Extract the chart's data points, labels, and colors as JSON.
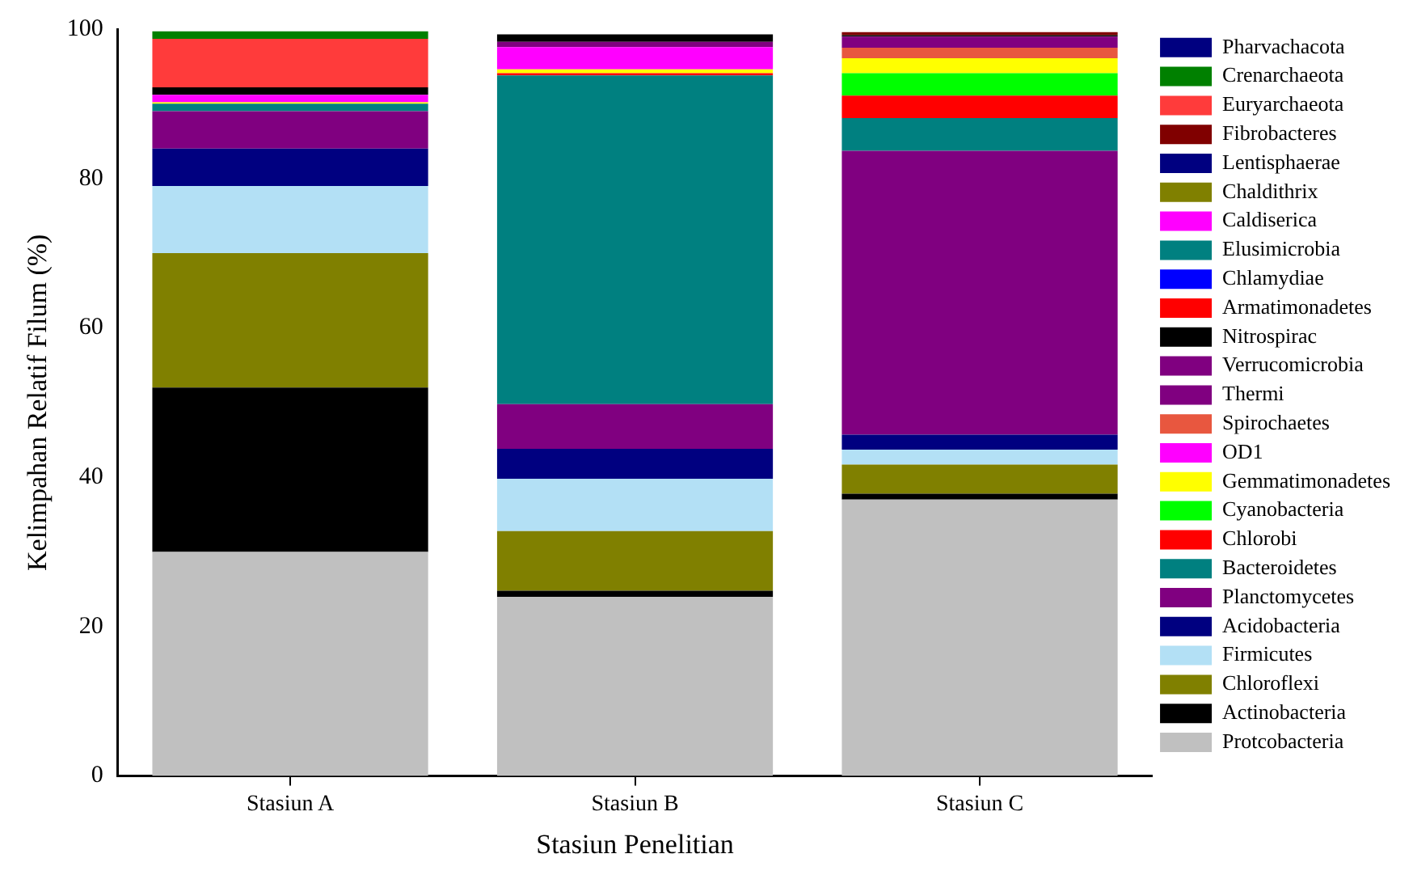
{
  "chart_data": {
    "type": "bar",
    "stacked": true,
    "xlabel": "Stasiun Penelitian",
    "ylabel": "Kelimpahan Relatif Filum (%)",
    "categories": [
      "Stasiun A",
      "Stasiun B",
      "Stasiun C"
    ],
    "ylim": [
      0,
      100
    ],
    "yticks": [
      0,
      20,
      40,
      60,
      80,
      100
    ],
    "legend": "right",
    "series": [
      {
        "name": "Protcobacteria",
        "color": "#c0c0c0",
        "values": [
          30,
          24,
          37
        ]
      },
      {
        "name": "Actinobacteria",
        "color": "#000000",
        "values": [
          22,
          0.8,
          0.8
        ]
      },
      {
        "name": "Chloroflexi",
        "color": "#808000",
        "values": [
          18,
          8,
          3.9
        ]
      },
      {
        "name": "Firmicutes",
        "color": "#b3e0f5",
        "values": [
          9,
          7,
          2
        ]
      },
      {
        "name": "Acidobacteria",
        "color": "#000080",
        "values": [
          5,
          4,
          2
        ]
      },
      {
        "name": "Planctomycetes",
        "color": "#800080",
        "values": [
          5,
          6,
          38
        ]
      },
      {
        "name": "Bacteroidetes",
        "color": "#008080",
        "values": [
          1,
          44,
          4.4
        ]
      },
      {
        "name": "Chlorobi",
        "color": "#ff0000",
        "values": [
          null,
          0.3,
          3
        ]
      },
      {
        "name": "Cyanobacteria",
        "color": "#00ff00",
        "values": [
          null,
          null,
          3
        ]
      },
      {
        "name": "Gemmatimonadetes",
        "color": "#ffff00",
        "values": [
          0.2,
          0.5,
          2
        ]
      },
      {
        "name": "OD1",
        "color": "#ff00ff",
        "values": [
          1,
          3,
          null
        ]
      },
      {
        "name": "Spirochaetes",
        "color": "#e8573f",
        "values": [
          null,
          null,
          1.4
        ]
      },
      {
        "name": "Thermi",
        "color": "#800080",
        "values": [
          null,
          null,
          1.5
        ]
      },
      {
        "name": "Verrucomicrobia",
        "color": "#800080",
        "values": [
          null,
          0.7,
          null
        ]
      },
      {
        "name": "Nitrospirac",
        "color": "#000000",
        "values": [
          1,
          1,
          0.2
        ]
      },
      {
        "name": "Armatimonadetes",
        "color": "#ff0000",
        "values": [
          null,
          null,
          null
        ]
      },
      {
        "name": "Chlamydiae",
        "color": "#0000ff",
        "values": [
          null,
          null,
          null
        ]
      },
      {
        "name": "Elusimicrobia",
        "color": "#008080",
        "values": [
          null,
          null,
          null
        ]
      },
      {
        "name": "Caldiserica",
        "color": "#ff00ff",
        "values": [
          null,
          null,
          null
        ]
      },
      {
        "name": "Chaldithrix",
        "color": "#808000",
        "values": [
          null,
          null,
          null
        ]
      },
      {
        "name": "Lentisphaerae",
        "color": "#000080",
        "values": [
          null,
          null,
          null
        ]
      },
      {
        "name": "Fibrobacteres",
        "color": "#800000",
        "values": [
          null,
          null,
          0.4
        ]
      },
      {
        "name": "Euryarchaeota",
        "color": "#ff3b3b",
        "values": [
          6.5,
          null,
          null
        ]
      },
      {
        "name": "Crenarchaeota",
        "color": "#008000",
        "values": [
          1,
          null,
          null
        ]
      },
      {
        "name": "Pharvachacota",
        "color": "#000080",
        "values": [
          null,
          null,
          null
        ]
      }
    ]
  }
}
